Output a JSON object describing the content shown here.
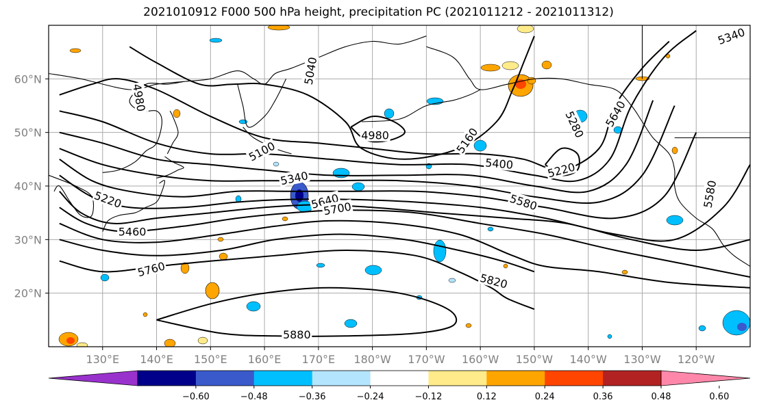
{
  "title": "2021010912 F000 500 hPa height, precipitation PC (2021011212 - 2021011312)",
  "map": {
    "lon_range": [
      120,
      250
    ],
    "lat_range": [
      10,
      70
    ],
    "grid": true,
    "lat_ticks": [
      {
        "lat": 60,
        "label": "60°N"
      },
      {
        "lat": 50,
        "label": "50°N"
      },
      {
        "lat": 40,
        "label": "40°N"
      },
      {
        "lat": 30,
        "label": "30°N"
      },
      {
        "lat": 20,
        "label": "20°N"
      }
    ],
    "lon_ticks": [
      {
        "lon": 130,
        "label": "130°E"
      },
      {
        "lon": 140,
        "label": "140°E"
      },
      {
        "lon": 150,
        "label": "150°E"
      },
      {
        "lon": 160,
        "label": "160°E"
      },
      {
        "lon": 170,
        "label": "170°E"
      },
      {
        "lon": 180,
        "label": "180°W"
      },
      {
        "lon": 190,
        "label": "170°W"
      },
      {
        "lon": 200,
        "label": "160°W"
      },
      {
        "lon": 210,
        "label": "150°W"
      },
      {
        "lon": 220,
        "label": "140°W"
      },
      {
        "lon": 230,
        "label": "130°W"
      },
      {
        "lon": 240,
        "label": "120°W"
      }
    ],
    "contour_labels": [
      {
        "text": "4980",
        "lon": 136.8,
        "lat": 56.5,
        "rot": 80
      },
      {
        "text": "5040",
        "lon": 168.5,
        "lat": 61.5,
        "rot": -80
      },
      {
        "text": "4980",
        "lon": 180.5,
        "lat": 49.5,
        "rot": 0
      },
      {
        "text": "5100",
        "lon": 159.5,
        "lat": 46.5,
        "rot": -28
      },
      {
        "text": "5160",
        "lon": 197.5,
        "lat": 48.5,
        "rot": -55
      },
      {
        "text": "5340",
        "lon": 165.5,
        "lat": 41.5,
        "rot": -12
      },
      {
        "text": "5400",
        "lon": 203.5,
        "lat": 44.2,
        "rot": 5
      },
      {
        "text": "5220",
        "lon": 215,
        "lat": 43,
        "rot": -15
      },
      {
        "text": "5280",
        "lon": 217.5,
        "lat": 51.5,
        "rot": 65
      },
      {
        "text": "5640",
        "lon": 225,
        "lat": 53.5,
        "rot": -60
      },
      {
        "text": "5220",
        "lon": 131,
        "lat": 37.5,
        "rot": 20
      },
      {
        "text": "5460",
        "lon": 135.5,
        "lat": 31.5,
        "rot": 0
      },
      {
        "text": "5640",
        "lon": 171.2,
        "lat": 37.2,
        "rot": -15
      },
      {
        "text": "5700",
        "lon": 173.5,
        "lat": 35.8,
        "rot": -10
      },
      {
        "text": "5580",
        "lon": 208,
        "lat": 37,
        "rot": 18
      },
      {
        "text": "5760",
        "lon": 139,
        "lat": 24.5,
        "rot": -15
      },
      {
        "text": "5820",
        "lon": 202.5,
        "lat": 22.3,
        "rot": 15
      },
      {
        "text": "5880",
        "lon": 166,
        "lat": 12.3,
        "rot": 0
      },
      {
        "text": "5580",
        "lon": 242.5,
        "lat": 38.5,
        "rot": -80
      },
      {
        "text": "5340",
        "lon": 246.5,
        "lat": 68,
        "rot": -20
      }
    ],
    "contours": [
      [
        [
          135,
          66
        ],
        [
          140,
          63
        ],
        [
          148,
          59
        ],
        [
          154,
          59
        ],
        [
          160,
          59
        ],
        [
          168,
          57
        ],
        [
          175,
          52
        ],
        [
          178,
          47
        ],
        [
          186,
          45
        ],
        [
          196,
          47
        ],
        [
          203,
          52
        ],
        [
          206,
          58
        ],
        [
          208,
          63
        ],
        [
          210,
          68
        ]
      ],
      [
        [
          122,
          57
        ],
        [
          128,
          59
        ],
        [
          133,
          60
        ],
        [
          140,
          58
        ],
        [
          150,
          53
        ],
        [
          160,
          49
        ],
        [
          170,
          48
        ],
        [
          180,
          47
        ],
        [
          190,
          46
        ],
        [
          200,
          46
        ],
        [
          208,
          45
        ],
        [
          215,
          43
        ],
        [
          222,
          47
        ],
        [
          225,
          55
        ],
        [
          230,
          62
        ],
        [
          235,
          67
        ]
      ],
      [
        [
          122,
          54
        ],
        [
          130,
          52
        ],
        [
          140,
          48
        ],
        [
          150,
          46
        ],
        [
          160,
          46
        ],
        [
          172,
          45
        ],
        [
          185,
          44
        ],
        [
          198,
          44
        ],
        [
          210,
          42
        ],
        [
          218,
          41
        ],
        [
          224,
          45
        ],
        [
          228,
          55
        ],
        [
          234,
          64
        ],
        [
          240,
          69
        ]
      ],
      [
        [
          122,
          50
        ],
        [
          130,
          48
        ],
        [
          140,
          45
        ],
        [
          150,
          44
        ],
        [
          160,
          43
        ],
        [
          172,
          42
        ],
        [
          185,
          42
        ],
        [
          198,
          42
        ],
        [
          210,
          40
        ],
        [
          220,
          39
        ],
        [
          227,
          44
        ],
        [
          232,
          56
        ]
      ],
      [
        [
          122,
          47
        ],
        [
          130,
          44
        ],
        [
          140,
          42
        ],
        [
          150,
          41
        ],
        [
          160,
          41
        ],
        [
          172,
          41
        ],
        [
          185,
          41
        ],
        [
          198,
          40
        ],
        [
          210,
          38
        ],
        [
          222,
          37
        ],
        [
          230,
          42
        ],
        [
          236,
          55
        ]
      ],
      [
        [
          122,
          45
        ],
        [
          128,
          41
        ],
        [
          135,
          39
        ],
        [
          145,
          38
        ],
        [
          155,
          39
        ],
        [
          165,
          39
        ],
        [
          175,
          39
        ],
        [
          188,
          39
        ],
        [
          200,
          38
        ],
        [
          212,
          36
        ],
        [
          225,
          34
        ],
        [
          234,
          38
        ],
        [
          240,
          50
        ]
      ],
      [
        [
          122,
          42
        ],
        [
          128,
          38
        ],
        [
          135,
          36
        ],
        [
          145,
          36
        ],
        [
          155,
          37
        ],
        [
          165,
          37.5
        ],
        [
          175,
          37.5
        ],
        [
          188,
          37
        ],
        [
          200,
          36
        ],
        [
          212,
          34
        ],
        [
          225,
          31
        ],
        [
          236,
          30
        ],
        [
          245,
          36
        ],
        [
          250,
          44
        ]
      ],
      [
        [
          122,
          39
        ],
        [
          126,
          35
        ],
        [
          132,
          33
        ],
        [
          140,
          34
        ],
        [
          150,
          35
        ],
        [
          160,
          36
        ],
        [
          170,
          36.5
        ],
        [
          180,
          36
        ],
        [
          192,
          35
        ],
        [
          205,
          34
        ],
        [
          216,
          33
        ],
        [
          228,
          30
        ],
        [
          240,
          28
        ],
        [
          250,
          30
        ]
      ],
      [
        [
          122,
          36
        ],
        [
          127,
          33
        ],
        [
          134,
          31.5
        ],
        [
          145,
          32.5
        ],
        [
          155,
          34
        ],
        [
          165,
          35
        ],
        [
          175,
          35.5
        ],
        [
          188,
          35
        ],
        [
          200,
          33
        ],
        [
          212,
          31
        ],
        [
          225,
          28
        ],
        [
          240,
          25
        ],
        [
          250,
          23
        ]
      ],
      [
        [
          122,
          33
        ],
        [
          130,
          30
        ],
        [
          140,
          29.5
        ],
        [
          152,
          31
        ],
        [
          162,
          32.5
        ],
        [
          172,
          33.5
        ],
        [
          184,
          33
        ],
        [
          196,
          31
        ],
        [
          206,
          27
        ],
        [
          212,
          25
        ],
        [
          222,
          24
        ],
        [
          235,
          22
        ],
        [
          250,
          21
        ]
      ],
      [
        [
          122,
          30
        ],
        [
          130,
          28
        ],
        [
          140,
          27
        ],
        [
          152,
          28
        ],
        [
          162,
          30
        ],
        [
          174,
          31
        ],
        [
          186,
          30
        ],
        [
          196,
          28
        ],
        [
          204,
          26
        ],
        [
          210,
          24
        ]
      ],
      [
        [
          122,
          26
        ],
        [
          130,
          24
        ],
        [
          140,
          25
        ],
        [
          150,
          26
        ],
        [
          162,
          27
        ],
        [
          175,
          28
        ],
        [
          188,
          27
        ],
        [
          196,
          24
        ],
        [
          202,
          21
        ],
        [
          205,
          19
        ],
        [
          210,
          17
        ]
      ],
      [
        [
          140,
          15
        ],
        [
          150,
          18
        ],
        [
          160,
          20
        ],
        [
          172,
          21
        ],
        [
          185,
          20
        ],
        [
          194,
          17
        ],
        [
          195,
          14
        ],
        [
          188,
          12.5
        ],
        [
          175,
          12
        ],
        [
          162,
          12
        ],
        [
          152,
          12.5
        ],
        [
          140,
          15
        ]
      ],
      [
        [
          176,
          51
        ],
        [
          180,
          53
        ],
        [
          184,
          52
        ],
        [
          186,
          50
        ],
        [
          183,
          48.5
        ],
        [
          179,
          48.5
        ],
        [
          176,
          51
        ]
      ],
      [
        [
          212,
          44
        ],
        [
          215,
          47
        ],
        [
          218,
          46
        ],
        [
          218,
          43
        ],
        [
          215,
          42
        ],
        [
          212,
          44
        ]
      ]
    ],
    "colors": {
      "contour": "#000000",
      "grid": "#aaaaaa",
      "coast": "#000000"
    }
  },
  "colorbar": {
    "colors": [
      "#9932cc",
      "#00008b",
      "#3a5acc",
      "#00bfff",
      "#b3e5ff",
      "#ffffff",
      "#ffeb8a",
      "#ffa500",
      "#ff4500",
      "#b22222",
      "#ff88aa"
    ],
    "tick_labels": [
      "−0.60",
      "−0.48",
      "−0.36",
      "−0.24",
      "−0.12",
      "0.12",
      "0.24",
      "0.36",
      "0.48",
      "0.60"
    ]
  }
}
